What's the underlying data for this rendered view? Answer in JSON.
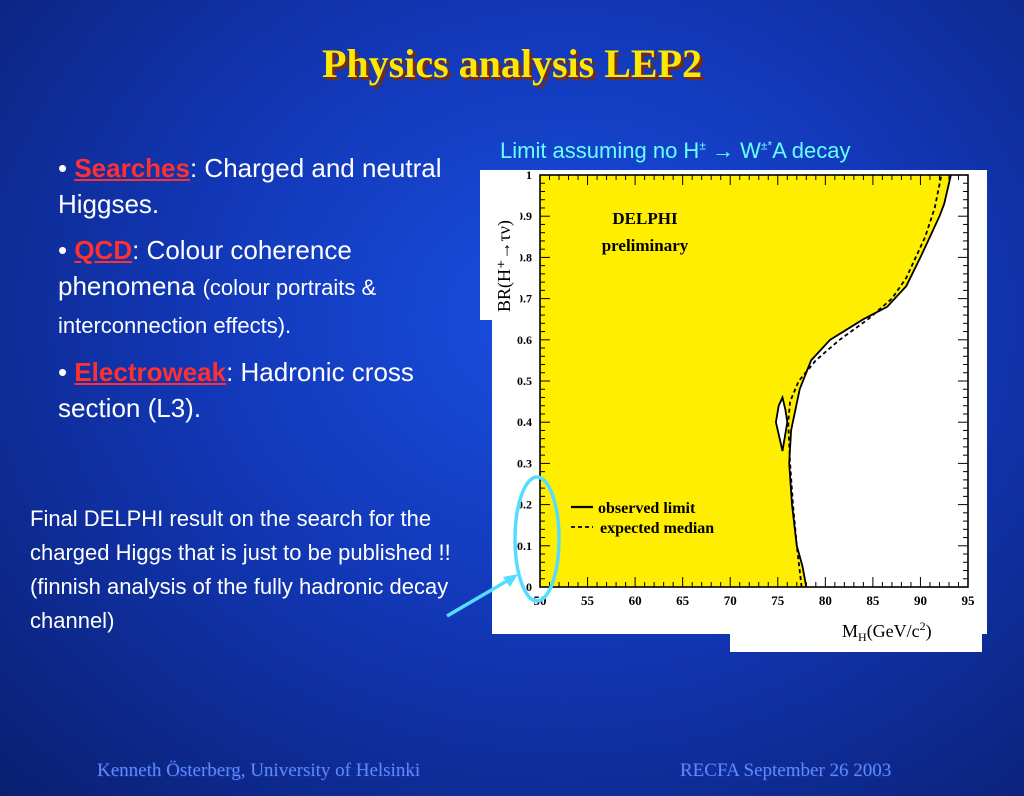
{
  "slide": {
    "title": "Physics analysis LEP2",
    "bullets": [
      {
        "keyword": "Searches",
        "text": ": Charged and neutral Higgses.",
        "small": ""
      },
      {
        "keyword": "QCD",
        "text": ": Colour coherence phenomena ",
        "small": "(colour portraits & interconnection effects)."
      },
      {
        "keyword": "Electroweak",
        "text": ": Hadronic cross section (L3).",
        "small": ""
      }
    ],
    "final_text": "Final DELPHI result on the search for the charged Higgs that is just to be published !! (finnish analysis of the fully hadronic decay channel)",
    "footer_left": "Kenneth Österberg, University of Helsinki",
    "footer_right": "RECFA September 26 2003",
    "colors": {
      "title": "#ffe800",
      "keyword": "#ff3030",
      "caption": "#66ffff",
      "excluded": "#ffee00"
    }
  },
  "limit_caption": {
    "pre": "Limit assuming no H",
    "pm": "±",
    "arrow": "→",
    "w": " W",
    "pm2": "±*",
    "post": "A decay"
  },
  "chart_data": {
    "type": "area",
    "title": "",
    "experiment": "DELPHI",
    "status": "preliminary",
    "ylabel": "BR(H⁺→τν)",
    "xlabel": "M",
    "xlabel_sub": "H",
    "xlabel_unit": "(GeV/c",
    "xlabel_sup": "2",
    "xlabel_end": ")",
    "xlim": [
      50,
      95
    ],
    "ylim": [
      0,
      1
    ],
    "xticks": [
      "50",
      "55",
      "60",
      "65",
      "70",
      "75",
      "80",
      "85",
      "90",
      "95"
    ],
    "yticks": [
      "0",
      "0.1",
      "0.2",
      "0.3",
      "0.4",
      "0.5",
      "0.6",
      "0.7",
      "0.8",
      "0.9",
      "1"
    ],
    "legend": [
      {
        "label": "observed limit",
        "style": "solid"
      },
      {
        "label": "expected median",
        "style": "dashed"
      }
    ],
    "observed": {
      "x": [
        78.0,
        77.6,
        77.0,
        76.5,
        76.2,
        76.4,
        77.3,
        78.5,
        80.5,
        84.0,
        86.5,
        88.5,
        90.0,
        91.0,
        92.0,
        92.5,
        93.2
      ],
      "y": [
        0.0,
        0.05,
        0.1,
        0.2,
        0.3,
        0.38,
        0.48,
        0.55,
        0.6,
        0.65,
        0.68,
        0.73,
        0.8,
        0.85,
        0.9,
        0.93,
        1.0
      ]
    },
    "expected": {
      "x": [
        77.5,
        77.0,
        76.6,
        76.3,
        76.1,
        76.3,
        77.2,
        79.0,
        81.5,
        84.5,
        87.0,
        88.5,
        89.5,
        90.5,
        91.5,
        92.2
      ],
      "y": [
        0.0,
        0.1,
        0.2,
        0.3,
        0.4,
        0.45,
        0.5,
        0.55,
        0.6,
        0.65,
        0.7,
        0.75,
        0.8,
        0.85,
        0.92,
        1.0
      ]
    },
    "island": {
      "x": [
        74.8,
        75.5,
        76.0,
        75.8,
        75.5,
        75.1,
        74.8
      ],
      "y": [
        0.4,
        0.33,
        0.4,
        0.43,
        0.46,
        0.44,
        0.4
      ]
    }
  }
}
